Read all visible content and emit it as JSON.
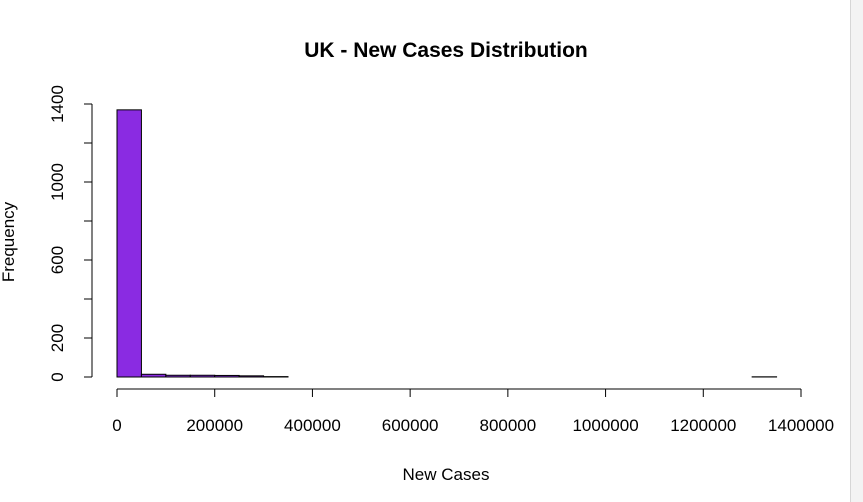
{
  "chart_data": {
    "type": "bar",
    "title": "UK - New Cases Distribution",
    "xlabel": "New Cases",
    "ylabel": "Frequency",
    "bin_width": 50000,
    "bins": [
      {
        "start": 0,
        "end": 50000,
        "count": 1370
      },
      {
        "start": 50000,
        "end": 100000,
        "count": 14
      },
      {
        "start": 100000,
        "end": 150000,
        "count": 9
      },
      {
        "start": 150000,
        "end": 200000,
        "count": 9
      },
      {
        "start": 200000,
        "end": 250000,
        "count": 8
      },
      {
        "start": 250000,
        "end": 300000,
        "count": 6
      },
      {
        "start": 300000,
        "end": 350000,
        "count": 2
      },
      {
        "start": 350000,
        "end": 400000,
        "count": 0
      },
      {
        "start": 400000,
        "end": 450000,
        "count": 0
      },
      {
        "start": 450000,
        "end": 500000,
        "count": 0
      },
      {
        "start": 500000,
        "end": 550000,
        "count": 0
      },
      {
        "start": 550000,
        "end": 600000,
        "count": 0
      },
      {
        "start": 600000,
        "end": 650000,
        "count": 0
      },
      {
        "start": 650000,
        "end": 700000,
        "count": 0
      },
      {
        "start": 700000,
        "end": 750000,
        "count": 0
      },
      {
        "start": 750000,
        "end": 800000,
        "count": 0
      },
      {
        "start": 800000,
        "end": 850000,
        "count": 0
      },
      {
        "start": 850000,
        "end": 900000,
        "count": 0
      },
      {
        "start": 900000,
        "end": 950000,
        "count": 0
      },
      {
        "start": 950000,
        "end": 1000000,
        "count": 0
      },
      {
        "start": 1000000,
        "end": 1050000,
        "count": 0
      },
      {
        "start": 1050000,
        "end": 1100000,
        "count": 0
      },
      {
        "start": 1100000,
        "end": 1150000,
        "count": 0
      },
      {
        "start": 1150000,
        "end": 1200000,
        "count": 0
      },
      {
        "start": 1200000,
        "end": 1250000,
        "count": 0
      },
      {
        "start": 1250000,
        "end": 1300000,
        "count": 0
      },
      {
        "start": 1300000,
        "end": 1350000,
        "count": 1
      }
    ],
    "xlim": [
      0,
      1400000
    ],
    "ylim": [
      0,
      1400
    ],
    "x_ticks": [
      0,
      200000,
      400000,
      600000,
      800000,
      1000000,
      1200000,
      1400000
    ],
    "x_tick_labels": [
      "0",
      "200000",
      "400000",
      "600000",
      "800000",
      "1000000",
      "1200000",
      "1400000"
    ],
    "y_ticks": [
      0,
      200,
      400,
      600,
      800,
      1000,
      1200,
      1400
    ],
    "y_tick_labels": [
      "0",
      "200",
      "",
      "600",
      "",
      "1000",
      "",
      "1400"
    ],
    "bar_color": "#8a2be2",
    "bar_border_color": "#000000",
    "grid": false,
    "legend": "none"
  }
}
